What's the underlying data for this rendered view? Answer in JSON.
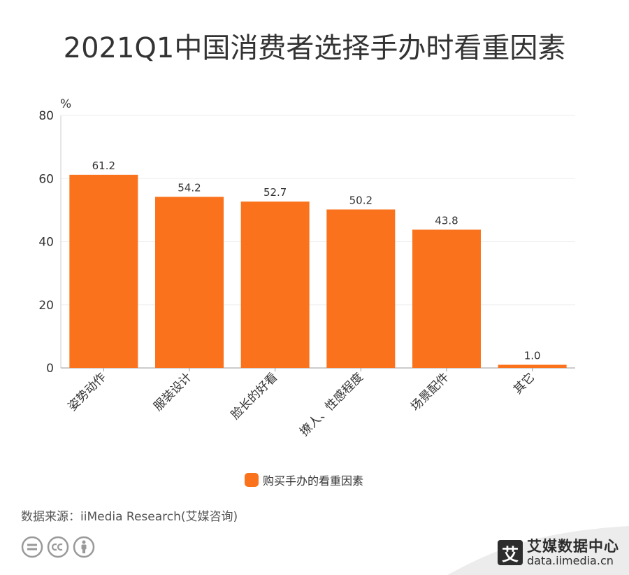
{
  "title": "2021Q1中国消费者选择手办时看重因素",
  "chart_data": {
    "type": "bar",
    "categories": [
      "姿势动作",
      "服装设计",
      "脸长的好看",
      "撩人、性感程度",
      "场景配件",
      "其它"
    ],
    "series": [
      {
        "name": "购买手办的看重因素",
        "values": [
          61.2,
          54.2,
          52.7,
          50.2,
          43.8,
          1.0
        ],
        "color": "#fa731c"
      }
    ],
    "value_labels": [
      "61.2",
      "54.2",
      "52.7",
      "50.2",
      "43.8",
      "1.0"
    ],
    "ylabel": "%",
    "ylim": [
      0,
      80
    ],
    "yticks": [
      "0",
      "20",
      "40",
      "60",
      "80"
    ],
    "grid": true,
    "legend_position": "bottom"
  },
  "legend": {
    "label": "购买手办的看重因素",
    "color": "#fa731c"
  },
  "source": "数据来源：iiMedia Research(艾媒咨询)",
  "footer": {
    "icons": [
      "cc-equals-icon",
      "cc-icon",
      "cc-by-person-icon"
    ],
    "brand_logo": "艾",
    "brand_name": "艾媒数据中心",
    "brand_url": "data.iimedia.cn"
  }
}
